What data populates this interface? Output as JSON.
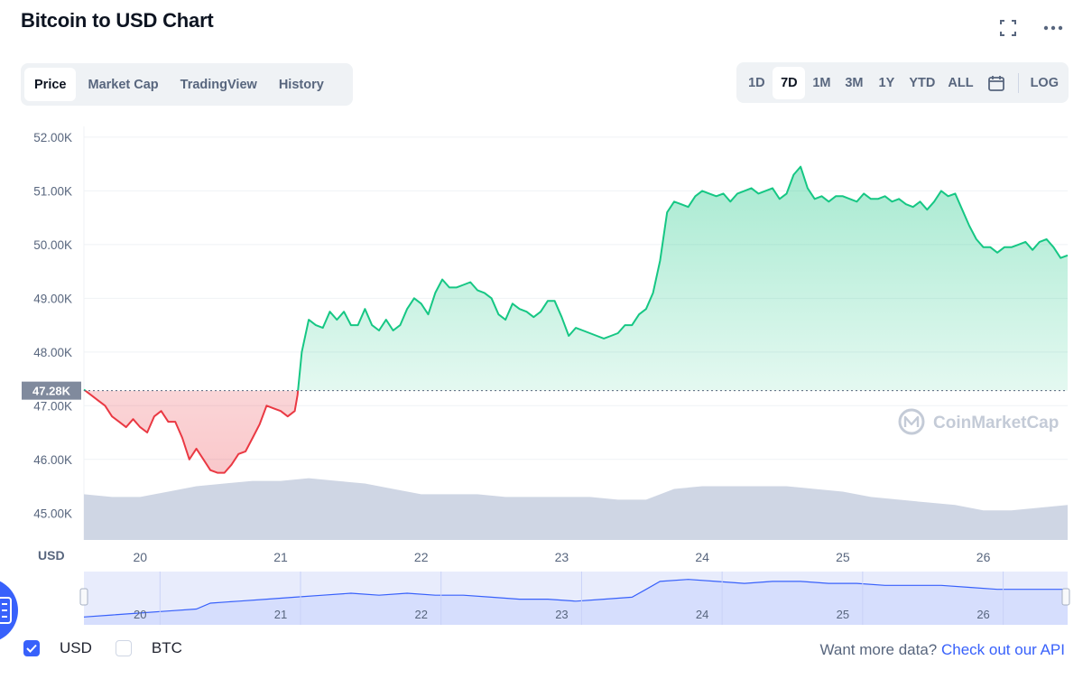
{
  "page": {
    "title": "Bitcoin to USD Chart"
  },
  "tabs": [
    {
      "label": "Price",
      "active": true
    },
    {
      "label": "Market Cap",
      "active": false
    },
    {
      "label": "TradingView",
      "active": false
    },
    {
      "label": "History",
      "active": false
    }
  ],
  "ranges": [
    {
      "label": "1D",
      "active": false
    },
    {
      "label": "7D",
      "active": true
    },
    {
      "label": "1M",
      "active": false
    },
    {
      "label": "3M",
      "active": false
    },
    {
      "label": "1Y",
      "active": false
    },
    {
      "label": "YTD",
      "active": false
    },
    {
      "label": "ALL",
      "active": false
    }
  ],
  "log_label": "LOG",
  "icons": {
    "fullscreen": "fullscreen-icon",
    "more": "more-icon",
    "calendar": "calendar-icon"
  },
  "colors": {
    "up": "#16c784",
    "down": "#ea3943",
    "accent": "#3861fb",
    "volume": "#cfd6e4"
  },
  "chart_data": {
    "type": "area",
    "currency_label": "USD",
    "reference_price": 47280,
    "reference_label": "47.28K",
    "y_ticks": [
      "52.00K",
      "51.00K",
      "50.00K",
      "49.00K",
      "48.00K",
      "47.00K",
      "46.00K",
      "45.00K"
    ],
    "ylim": [
      44500,
      52200
    ],
    "x_ticks": [
      "20",
      "21",
      "22",
      "23",
      "24",
      "25",
      "26"
    ],
    "xlim": [
      19.6,
      26.6
    ],
    "grid": true,
    "watermark": "CoinMarketCap",
    "price": [
      [
        19.6,
        47300
      ],
      [
        19.65,
        47200
      ],
      [
        19.7,
        47100
      ],
      [
        19.75,
        47000
      ],
      [
        19.8,
        46800
      ],
      [
        19.85,
        46700
      ],
      [
        19.9,
        46600
      ],
      [
        19.95,
        46750
      ],
      [
        20.0,
        46600
      ],
      [
        20.05,
        46500
      ],
      [
        20.1,
        46800
      ],
      [
        20.15,
        46900
      ],
      [
        20.2,
        46700
      ],
      [
        20.25,
        46700
      ],
      [
        20.3,
        46400
      ],
      [
        20.35,
        46000
      ],
      [
        20.4,
        46200
      ],
      [
        20.45,
        46000
      ],
      [
        20.5,
        45800
      ],
      [
        20.55,
        45750
      ],
      [
        20.6,
        45750
      ],
      [
        20.65,
        45900
      ],
      [
        20.7,
        46100
      ],
      [
        20.75,
        46150
      ],
      [
        20.8,
        46400
      ],
      [
        20.85,
        46650
      ],
      [
        20.9,
        47000
      ],
      [
        20.95,
        46950
      ],
      [
        21.0,
        46900
      ],
      [
        21.05,
        46800
      ],
      [
        21.1,
        46900
      ],
      [
        21.12,
        47200
      ],
      [
        21.15,
        48000
      ],
      [
        21.2,
        48600
      ],
      [
        21.25,
        48500
      ],
      [
        21.3,
        48450
      ],
      [
        21.35,
        48750
      ],
      [
        21.4,
        48600
      ],
      [
        21.45,
        48750
      ],
      [
        21.5,
        48500
      ],
      [
        21.55,
        48500
      ],
      [
        21.6,
        48800
      ],
      [
        21.65,
        48500
      ],
      [
        21.7,
        48400
      ],
      [
        21.75,
        48600
      ],
      [
        21.8,
        48400
      ],
      [
        21.85,
        48500
      ],
      [
        21.9,
        48800
      ],
      [
        21.95,
        49000
      ],
      [
        22.0,
        48900
      ],
      [
        22.05,
        48700
      ],
      [
        22.1,
        49100
      ],
      [
        22.15,
        49350
      ],
      [
        22.2,
        49200
      ],
      [
        22.25,
        49200
      ],
      [
        22.3,
        49250
      ],
      [
        22.35,
        49300
      ],
      [
        22.4,
        49150
      ],
      [
        22.45,
        49100
      ],
      [
        22.5,
        49000
      ],
      [
        22.55,
        48700
      ],
      [
        22.6,
        48600
      ],
      [
        22.65,
        48900
      ],
      [
        22.7,
        48800
      ],
      [
        22.75,
        48750
      ],
      [
        22.8,
        48650
      ],
      [
        22.85,
        48750
      ],
      [
        22.9,
        48950
      ],
      [
        22.95,
        48950
      ],
      [
        23.0,
        48650
      ],
      [
        23.05,
        48300
      ],
      [
        23.1,
        48450
      ],
      [
        23.15,
        48400
      ],
      [
        23.2,
        48350
      ],
      [
        23.25,
        48300
      ],
      [
        23.3,
        48250
      ],
      [
        23.35,
        48300
      ],
      [
        23.4,
        48350
      ],
      [
        23.45,
        48500
      ],
      [
        23.5,
        48500
      ],
      [
        23.55,
        48700
      ],
      [
        23.6,
        48800
      ],
      [
        23.65,
        49100
      ],
      [
        23.7,
        49700
      ],
      [
        23.75,
        50600
      ],
      [
        23.8,
        50800
      ],
      [
        23.85,
        50750
      ],
      [
        23.9,
        50700
      ],
      [
        23.95,
        50900
      ],
      [
        24.0,
        51000
      ],
      [
        24.05,
        50950
      ],
      [
        24.1,
        50900
      ],
      [
        24.15,
        50950
      ],
      [
        24.2,
        50800
      ],
      [
        24.25,
        50950
      ],
      [
        24.3,
        51000
      ],
      [
        24.35,
        51050
      ],
      [
        24.4,
        50950
      ],
      [
        24.45,
        51000
      ],
      [
        24.5,
        51050
      ],
      [
        24.55,
        50850
      ],
      [
        24.6,
        50950
      ],
      [
        24.65,
        51300
      ],
      [
        24.7,
        51450
      ],
      [
        24.75,
        51050
      ],
      [
        24.8,
        50850
      ],
      [
        24.85,
        50900
      ],
      [
        24.9,
        50800
      ],
      [
        24.95,
        50900
      ],
      [
        25.0,
        50900
      ],
      [
        25.05,
        50850
      ],
      [
        25.1,
        50800
      ],
      [
        25.15,
        50950
      ],
      [
        25.2,
        50850
      ],
      [
        25.25,
        50850
      ],
      [
        25.3,
        50900
      ],
      [
        25.35,
        50800
      ],
      [
        25.4,
        50850
      ],
      [
        25.45,
        50750
      ],
      [
        25.5,
        50700
      ],
      [
        25.55,
        50800
      ],
      [
        25.6,
        50650
      ],
      [
        25.65,
        50800
      ],
      [
        25.7,
        51000
      ],
      [
        25.75,
        50900
      ],
      [
        25.8,
        50950
      ],
      [
        25.85,
        50650
      ],
      [
        25.9,
        50350
      ],
      [
        25.95,
        50100
      ],
      [
        26.0,
        49950
      ],
      [
        26.05,
        49950
      ],
      [
        26.1,
        49850
      ],
      [
        26.15,
        49950
      ],
      [
        26.2,
        49950
      ],
      [
        26.25,
        50000
      ],
      [
        26.3,
        50050
      ],
      [
        26.35,
        49900
      ],
      [
        26.4,
        50050
      ],
      [
        26.45,
        50100
      ],
      [
        26.5,
        49950
      ],
      [
        26.55,
        49750
      ],
      [
        26.6,
        49800
      ]
    ],
    "volume": [
      [
        19.6,
        45350
      ],
      [
        19.8,
        45300
      ],
      [
        20.0,
        45300
      ],
      [
        20.2,
        45400
      ],
      [
        20.4,
        45500
      ],
      [
        20.6,
        45550
      ],
      [
        20.8,
        45600
      ],
      [
        21.0,
        45600
      ],
      [
        21.2,
        45650
      ],
      [
        21.4,
        45600
      ],
      [
        21.6,
        45550
      ],
      [
        21.8,
        45450
      ],
      [
        22.0,
        45350
      ],
      [
        22.2,
        45350
      ],
      [
        22.4,
        45350
      ],
      [
        22.6,
        45300
      ],
      [
        22.8,
        45300
      ],
      [
        23.0,
        45300
      ],
      [
        23.2,
        45300
      ],
      [
        23.4,
        45250
      ],
      [
        23.6,
        45250
      ],
      [
        23.8,
        45450
      ],
      [
        24.0,
        45500
      ],
      [
        24.2,
        45500
      ],
      [
        24.4,
        45500
      ],
      [
        24.6,
        45500
      ],
      [
        24.8,
        45450
      ],
      [
        25.0,
        45400
      ],
      [
        25.2,
        45300
      ],
      [
        25.4,
        45250
      ],
      [
        25.6,
        45200
      ],
      [
        25.8,
        45150
      ],
      [
        26.0,
        45050
      ],
      [
        26.2,
        45050
      ],
      [
        26.4,
        45100
      ],
      [
        26.6,
        45150
      ]
    ],
    "navigator": {
      "x_ticks": [
        "20",
        "21",
        "22",
        "23",
        "24",
        "25",
        "26"
      ],
      "series": [
        [
          19.6,
          47100
        ],
        [
          19.8,
          47150
        ],
        [
          20.0,
          47200
        ],
        [
          20.2,
          47250
        ],
        [
          20.4,
          47300
        ],
        [
          20.5,
          47450
        ],
        [
          20.7,
          47500
        ],
        [
          20.9,
          47550
        ],
        [
          21.1,
          47600
        ],
        [
          21.3,
          47650
        ],
        [
          21.5,
          47700
        ],
        [
          21.7,
          47650
        ],
        [
          21.9,
          47700
        ],
        [
          22.1,
          47650
        ],
        [
          22.3,
          47650
        ],
        [
          22.5,
          47600
        ],
        [
          22.7,
          47550
        ],
        [
          22.9,
          47550
        ],
        [
          23.1,
          47500
        ],
        [
          23.3,
          47550
        ],
        [
          23.5,
          47600
        ],
        [
          23.6,
          47800
        ],
        [
          23.7,
          48000
        ],
        [
          23.9,
          48050
        ],
        [
          24.1,
          48000
        ],
        [
          24.3,
          47950
        ],
        [
          24.5,
          48000
        ],
        [
          24.7,
          48000
        ],
        [
          24.9,
          47950
        ],
        [
          25.1,
          47950
        ],
        [
          25.3,
          47900
        ],
        [
          25.5,
          47900
        ],
        [
          25.7,
          47900
        ],
        [
          25.9,
          47850
        ],
        [
          26.1,
          47800
        ],
        [
          26.3,
          47800
        ],
        [
          26.6,
          47800
        ]
      ],
      "ylim": [
        46900,
        48250
      ]
    }
  },
  "legend": [
    {
      "label": "USD",
      "checked": true
    },
    {
      "label": "BTC",
      "checked": false
    }
  ],
  "footer": {
    "prompt": "Want more data? ",
    "link": "Check out our API"
  }
}
